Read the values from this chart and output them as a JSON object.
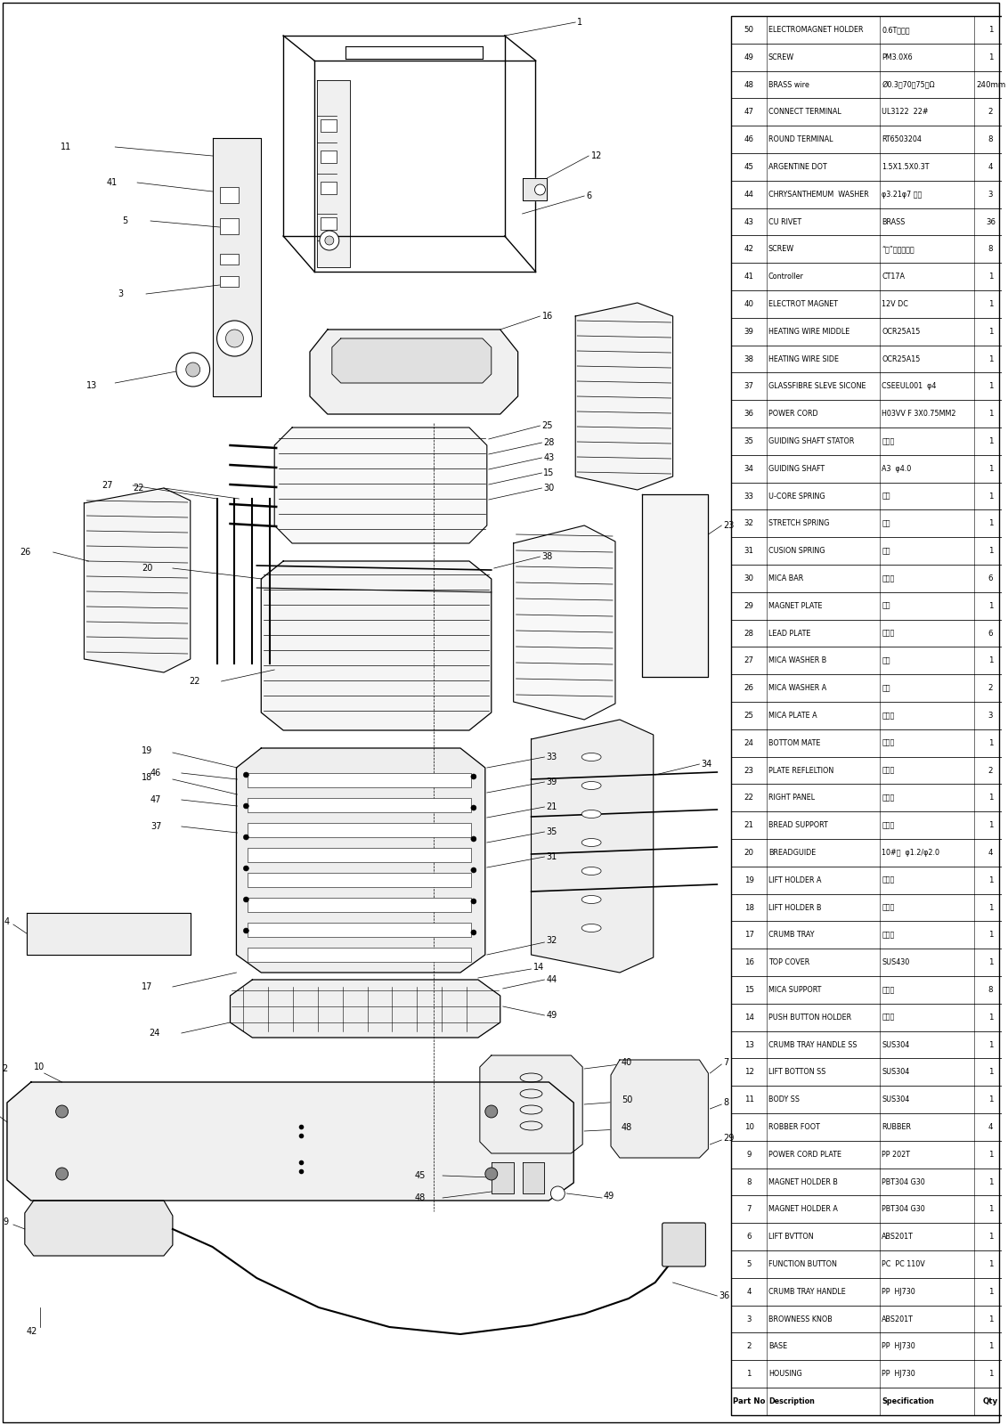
{
  "bg_color": "#ffffff",
  "parts": [
    {
      "no": "50",
      "desc": "ELECTROMAGNET HOLDER",
      "spec": "0.6T电解板",
      "qty": "1"
    },
    {
      "no": "49",
      "desc": "SCREW",
      "spec": "PM3.0X6",
      "qty": "1"
    },
    {
      "no": "48",
      "desc": "BRASS wire",
      "spec": "Ø0.3（70～75）Ω",
      "qty": "240mm"
    },
    {
      "no": "47",
      "desc": "CONNECT TERMINAL",
      "spec": "UL3122  22#",
      "qty": "2"
    },
    {
      "no": "46",
      "desc": "ROUND TERMINAL",
      "spec": "RT6503204",
      "qty": "8"
    },
    {
      "no": "45",
      "desc": "ARGENTINE DOT",
      "spec": "1.5X1.5X0.3T",
      "qty": "4"
    },
    {
      "no": "44",
      "desc": "CHRYSANTHEMUM  WASHER",
      "spec": "φ3.21φ7 针勺",
      "qty": "3"
    },
    {
      "no": "43",
      "desc": "CU RIVET",
      "spec": "BRASS",
      "qty": "36"
    },
    {
      "no": "42",
      "desc": "SCREW",
      "spec": "“十”头自攻螺钉",
      "qty": "8"
    },
    {
      "no": "41",
      "desc": "Controller",
      "spec": "CT17A",
      "qty": "1"
    },
    {
      "no": "40",
      "desc": "ELECTROT\nMAGNET",
      "spec": "12V DC",
      "qty": "1"
    },
    {
      "no": "39",
      "desc": "HEATING WIRE MIDDLE",
      "spec": "OCR25A15",
      "qty": "1"
    },
    {
      "no": "38",
      "desc": "HEATING WIRE SIDE",
      "spec": "OCR25A15",
      "qty": "1"
    },
    {
      "no": "37",
      "desc": "GLASSFIBRE SLEVE SICONE",
      "spec": "CSEEUL001  φ4",
      "qty": "1"
    },
    {
      "no": "36",
      "desc": "POWER CORD",
      "spec": "H03VV F 3X0.75MM2",
      "qty": "1"
    },
    {
      "no": "35",
      "desc": "GUIDING SHAFT STATOR",
      "spec": "钔铁片",
      "qty": "1"
    },
    {
      "no": "34",
      "desc": "GUIDING SHAFT",
      "spec": "A3  φ4.0",
      "qty": "1"
    },
    {
      "no": "33",
      "desc": "U-CORE SPRING",
      "spec": "弹笧",
      "qty": "1"
    },
    {
      "no": "32",
      "desc": "STRETCH SPRING",
      "spec": "弹笧",
      "qty": "1"
    },
    {
      "no": "31",
      "desc": "CUSION SPRING",
      "spec": "弹笧",
      "qty": "1"
    },
    {
      "no": "30",
      "desc": "MICA BAR",
      "spec": "云母板",
      "qty": "6"
    },
    {
      "no": "29",
      "desc": "MAGNET PLATE",
      "spec": "衔铁",
      "qty": "1"
    },
    {
      "no": "28",
      "desc": "LEAD PLATE",
      "spec": "导电片",
      "qty": "6"
    },
    {
      "no": "27",
      "desc": "MICA WASHER B",
      "spec": "坠片",
      "qty": "1"
    },
    {
      "no": "26",
      "desc": "MICA WASHER A",
      "spec": "坠片",
      "qty": "2"
    },
    {
      "no": "25",
      "desc": "MICA PLATE A",
      "spec": "云母板",
      "qty": "3"
    },
    {
      "no": "24",
      "desc": "BOTTOM MATE",
      "spec": "钔铁片",
      "qty": "1"
    },
    {
      "no": "23",
      "desc": "PLATE REFLELTION",
      "spec": "钔铁片",
      "qty": "2"
    },
    {
      "no": "22",
      "desc": "RIGHT PANEL",
      "spec": "钔铁片",
      "qty": "1"
    },
    {
      "no": "21",
      "desc": "BREAD SUPPORT",
      "spec": "钔铁片",
      "qty": "1"
    },
    {
      "no": "20",
      "desc": "BREADGUIDE",
      "spec": "10#铁  φ1.2/φ2.0",
      "qty": "4"
    },
    {
      "no": "19",
      "desc": "LIFT HOLDER A",
      "spec": "钔铁片",
      "qty": "1"
    },
    {
      "no": "18",
      "desc": "LIFT HOLDER B",
      "spec": "钔铁片",
      "qty": "1"
    },
    {
      "no": "17",
      "desc": "CRUMB TRAY",
      "spec": "钔铁片",
      "qty": "1"
    },
    {
      "no": "16",
      "desc": "TOP COVER",
      "spec": "SUS430",
      "qty": "1"
    },
    {
      "no": "15",
      "desc": "MICA SUPPORT",
      "spec": "钔铁片",
      "qty": "8"
    },
    {
      "no": "14",
      "desc": "PUSH BUTTON HOLDER",
      "spec": "钔铁片",
      "qty": "1"
    },
    {
      "no": "13",
      "desc": "CRUMB TRAY HANDLE SS",
      "spec": "SUS304",
      "qty": "1"
    },
    {
      "no": "12",
      "desc": "LIFT BOTTON SS",
      "spec": "SUS304",
      "qty": "1"
    },
    {
      "no": "11",
      "desc": "BODY SS",
      "spec": "SUS304",
      "qty": "1"
    },
    {
      "no": "10",
      "desc": "ROBBER FOOT",
      "spec": "RUBBER",
      "qty": "4"
    },
    {
      "no": "9",
      "desc": "POWER CORD PLATE",
      "spec": "PP 202T",
      "qty": "1"
    },
    {
      "no": "8",
      "desc": "MAGNET HOLDER B",
      "spec": "PBT304 G30",
      "qty": "1"
    },
    {
      "no": "7",
      "desc": "MAGNET HOLDER A",
      "spec": "PBT304 G30",
      "qty": "1"
    },
    {
      "no": "6",
      "desc": "LIFT BVTTON",
      "spec": "ABS201T",
      "qty": "1"
    },
    {
      "no": "5",
      "desc": "FUNCTION BUTTON",
      "spec": "PC  PC 110V",
      "qty": "1"
    },
    {
      "no": "4",
      "desc": "CRUMB TRAY HANDLE",
      "spec": "PP  HJ730",
      "qty": "1"
    },
    {
      "no": "3",
      "desc": "BROWNESS KNOB",
      "spec": "ABS201T",
      "qty": "1"
    },
    {
      "no": "2",
      "desc": "BASE",
      "spec": "PP  HJ730",
      "qty": "1"
    },
    {
      "no": "1",
      "desc": "HOUSING",
      "spec": "PP  HJ730",
      "qty": "1"
    },
    {
      "no": "Part No",
      "desc": "Description",
      "spec": "Specification",
      "qty": "Qty"
    }
  ]
}
